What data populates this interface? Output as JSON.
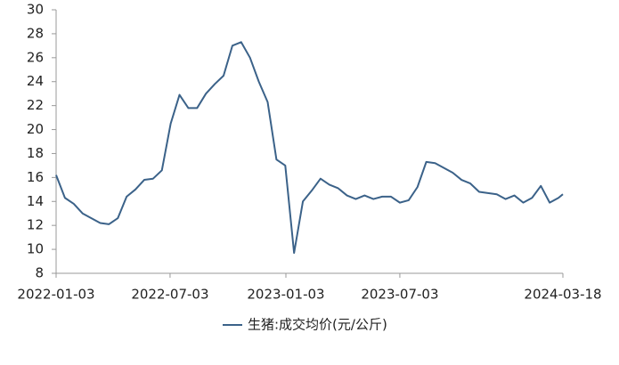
{
  "chart_data": {
    "type": "line",
    "x": [
      "2022-01-03",
      "2022-01-17",
      "2022-01-31",
      "2022-02-14",
      "2022-02-28",
      "2022-03-14",
      "2022-03-28",
      "2022-04-11",
      "2022-04-25",
      "2022-05-09",
      "2022-05-23",
      "2022-06-06",
      "2022-06-20",
      "2022-07-04",
      "2022-07-18",
      "2022-08-01",
      "2022-08-15",
      "2022-08-29",
      "2022-09-12",
      "2022-09-26",
      "2022-10-10",
      "2022-10-24",
      "2022-11-07",
      "2022-11-21",
      "2022-12-05",
      "2022-12-19",
      "2023-01-02",
      "2023-01-16",
      "2023-01-30",
      "2023-02-13",
      "2023-02-27",
      "2023-03-13",
      "2023-03-27",
      "2023-04-10",
      "2023-04-24",
      "2023-05-08",
      "2023-05-22",
      "2023-06-05",
      "2023-06-19",
      "2023-07-03",
      "2023-07-17",
      "2023-07-31",
      "2023-08-14",
      "2023-08-28",
      "2023-09-11",
      "2023-09-25",
      "2023-10-09",
      "2023-10-23",
      "2023-11-06",
      "2023-11-20",
      "2023-12-04",
      "2023-12-18",
      "2024-01-01",
      "2024-01-15",
      "2024-01-29",
      "2024-02-12",
      "2024-02-26",
      "2024-03-11",
      "2024-03-18"
    ],
    "series": [
      {
        "name": "生猪:成交均价(元/公斤)",
        "color": "#3b6289",
        "values": [
          16.2,
          14.3,
          13.8,
          13.0,
          12.6,
          12.2,
          12.1,
          12.6,
          14.4,
          15.0,
          15.8,
          15.9,
          16.6,
          20.5,
          22.9,
          21.8,
          21.8,
          23.0,
          23.8,
          24.5,
          27.0,
          27.3,
          26.0,
          24.0,
          22.3,
          17.5,
          17.0,
          9.7,
          14.0,
          14.9,
          15.9,
          15.4,
          15.1,
          14.5,
          14.2,
          14.5,
          14.2,
          14.4,
          14.4,
          13.9,
          14.1,
          15.2,
          17.3,
          17.2,
          16.8,
          16.4,
          15.8,
          15.5,
          14.8,
          14.7,
          14.6,
          14.2,
          14.5,
          13.9,
          14.3,
          15.3,
          13.9,
          14.3,
          14.6
        ]
      }
    ],
    "xlim": [
      "2022-01-03",
      "2024-03-18"
    ],
    "xticks": [
      "2022-01-03",
      "2022-07-03",
      "2023-01-03",
      "2023-07-03",
      "2024-03-18"
    ],
    "ylim": [
      8,
      30
    ],
    "yticks": [
      8,
      10,
      12,
      14,
      16,
      18,
      20,
      22,
      24,
      26,
      28,
      30
    ],
    "grid": false,
    "legend": "bottom"
  }
}
